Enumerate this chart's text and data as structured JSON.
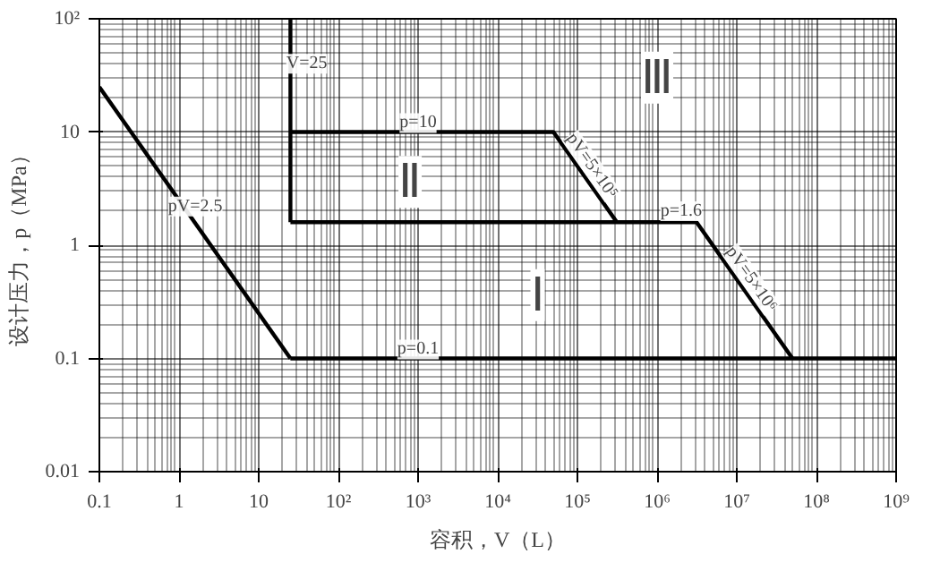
{
  "chart_data": {
    "type": "line",
    "xlabel": "容积，V（L）",
    "ylabel": "设计压力，p（MPa）",
    "log": "xy",
    "grid": true,
    "marker": "none",
    "line_style": "solid",
    "xlim": [
      0.1,
      1000000000
    ],
    "ylim": [
      0.01,
      100
    ],
    "xticks": [
      0.1,
      1,
      10,
      {
        "value": 100,
        "label": "10²"
      },
      {
        "value": 1000,
        "label": "10³"
      },
      {
        "value": 10000,
        "label": "10⁴"
      },
      {
        "value": 100000,
        "label": "10⁵"
      },
      {
        "value": 1000000,
        "label": "10⁶"
      },
      {
        "value": 10000000,
        "label": "10⁷"
      },
      {
        "value": 100000000,
        "label": "10⁸"
      },
      {
        "value": 1000000000,
        "label": "10⁹"
      }
    ],
    "yticks": [
      0.01,
      0.1,
      1,
      10,
      {
        "value": 100,
        "label": "10²"
      }
    ],
    "series": [
      {
        "color": "#000000",
        "x": [
          0.1,
          25
        ],
        "values": [
          25,
          0.1
        ]
      },
      {
        "color": "#000000",
        "x": [
          25,
          1000000000
        ],
        "values": [
          0.1,
          0.1
        ]
      },
      {
        "color": "#000000",
        "x": [
          25,
          25
        ],
        "values": [
          1.6,
          100
        ]
      },
      {
        "color": "#000000",
        "x": [
          25,
          50000,
          312500
        ],
        "values": [
          10,
          10,
          1.6
        ]
      },
      {
        "color": "#000000",
        "x": [
          25,
          3125000,
          50000000
        ],
        "values": [
          1.6,
          1.6,
          0.1
        ]
      }
    ],
    "annotations": [
      {
        "text": "pV=2.5",
        "x": 1.6,
        "y": 2.2
      },
      {
        "text": "V=25",
        "x": 40,
        "y": 40
      },
      {
        "text": "p=10",
        "x": 1000,
        "y": 12
      },
      {
        "text": "pV=5×10⁵",
        "x": 150000,
        "y": 5
      },
      {
        "text": "p=1.6",
        "x": 2000000,
        "y": 2
      },
      {
        "text": "pV=5×10⁶",
        "x": 15000000,
        "y": 0.5
      },
      {
        "text": "p=0.1",
        "x": 1000,
        "y": 0.12
      },
      "Ⅲ",
      "Ⅱ",
      "Ⅰ"
    ]
  }
}
